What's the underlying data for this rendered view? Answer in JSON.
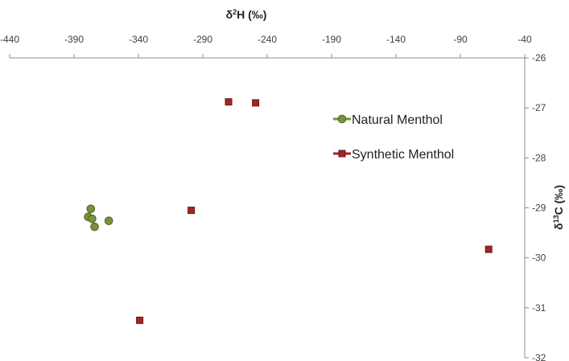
{
  "chart_data": {
    "type": "scatter",
    "xlabel": "δ2H (‰)",
    "ylabel": "δ13C (‰)",
    "xlim": [
      -440,
      -40
    ],
    "ylim": [
      -32,
      -26
    ],
    "x_ticks": [
      -440,
      -390,
      -340,
      -290,
      -240,
      -190,
      -140,
      -90,
      -40
    ],
    "y_ticks": [
      -26,
      -27,
      -28,
      -29,
      -30,
      -31,
      -32
    ],
    "x_axis_position": "top",
    "y_axis_position": "right",
    "grid": false,
    "legend_position": "top-right",
    "series": [
      {
        "name": "Natural Menthol",
        "marker": "circle",
        "color": "#76923C",
        "edge_color": "#4F6228",
        "points": [
          {
            "x": -377,
            "y": -29.02
          },
          {
            "x": -379,
            "y": -29.18
          },
          {
            "x": -376,
            "y": -29.22
          },
          {
            "x": -374,
            "y": -29.38
          },
          {
            "x": -363,
            "y": -29.26
          }
        ]
      },
      {
        "name": "Synthetic Menthol",
        "marker": "square",
        "color": "#A0262A",
        "edge_color": "#6E1416",
        "points": [
          {
            "x": -270,
            "y": -26.88
          },
          {
            "x": -249,
            "y": -26.9
          },
          {
            "x": -299,
            "y": -29.05
          },
          {
            "x": -339,
            "y": -31.25
          },
          {
            "x": -68,
            "y": -29.83
          }
        ]
      }
    ]
  }
}
